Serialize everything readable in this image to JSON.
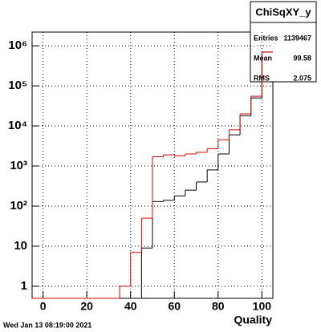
{
  "chart_data": {
    "type": "histogram",
    "log_y": true,
    "grid": true,
    "x_label": "Quality",
    "bins": [
      -5,
      0,
      5,
      10,
      15,
      20,
      25,
      30,
      35,
      40,
      45,
      50,
      55,
      60,
      65,
      70,
      75,
      80,
      85,
      90,
      95,
      100,
      105
    ],
    "series": [
      {
        "color": "#000000",
        "values": [
          0,
          0,
          0,
          0,
          0,
          0,
          0,
          0,
          0,
          0,
          9,
          130,
          140,
          180,
          250,
          400,
          800,
          2000,
          6000,
          18000,
          50000,
          700000
        ]
      },
      {
        "color": "#dd0000",
        "values": [
          0,
          0,
          0,
          0,
          0,
          0,
          0,
          0,
          1,
          7,
          50,
          1700,
          1900,
          1800,
          2000,
          2200,
          2700,
          4500,
          8000,
          20000,
          55000,
          700000
        ]
      }
    ],
    "xlim": [
      -5,
      105
    ],
    "xticks": [
      0,
      20,
      40,
      60,
      80,
      100
    ],
    "ylim": [
      0.5,
      2200000
    ],
    "yticks": [
      1,
      10,
      {
        "value": 100,
        "label": "10²"
      },
      {
        "value": 1000,
        "label": "10³"
      },
      {
        "value": 10000,
        "label": "10⁴"
      },
      {
        "value": 100000,
        "label": "10⁵"
      },
      {
        "value": 1000000,
        "label": "10⁶"
      }
    ],
    "stats": {
      "title": "ChiSqXY_y",
      "rows": [
        [
          "Entries",
          "1139467"
        ],
        [
          "Mean",
          "99.58"
        ],
        [
          "RMS",
          "2.075"
        ]
      ]
    },
    "footer": "Wed Jan 13 08:19:00 2021"
  }
}
